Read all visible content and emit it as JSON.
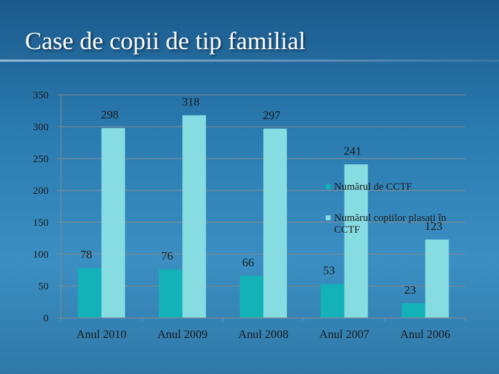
{
  "slide": {
    "title": "Case de copii de tip familial"
  },
  "colors": {
    "series1": "#12b2b8",
    "series2": "#87dce2"
  },
  "chart_data": {
    "type": "bar",
    "categories": [
      "Anul 2010",
      "Anul 2009",
      "Anul 2008",
      "Anul 2007",
      "Anul 2006"
    ],
    "series": [
      {
        "name": "Numărul de CCTF",
        "values": [
          78,
          76,
          66,
          53,
          23
        ]
      },
      {
        "name": "Numărul copiilor plasați în CCTF",
        "values": [
          298,
          318,
          297,
          241,
          123
        ]
      }
    ],
    "ylim": [
      0,
      350
    ],
    "yticks": [
      0,
      50,
      100,
      150,
      200,
      250,
      300,
      350
    ],
    "grid": true,
    "legend_position": "right",
    "data_labels": true
  }
}
